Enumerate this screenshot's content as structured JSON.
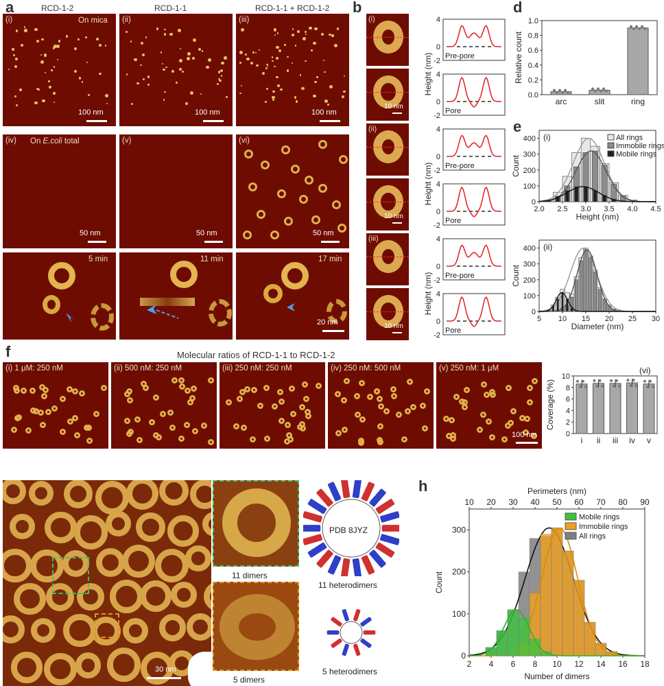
{
  "panel_a": {
    "letter": "a",
    "col_headers": [
      "RCD-1-2",
      "RCD-1-1",
      "RCD-1-1 + RCD-1-2"
    ],
    "top_row": {
      "labels": [
        "(i)",
        "(ii)",
        "(iii)"
      ],
      "substrate": "On mica",
      "scale": "100 nm"
    },
    "bottom_row": {
      "labels": [
        "(iv)",
        "(v)",
        "(vi)"
      ],
      "substrate_prefix": "On ",
      "substrate_italic": "E.coli",
      "substrate_suffix": " total",
      "scale": "50 nm"
    }
  },
  "panel_c": {
    "letter": "c",
    "times": [
      "5 min",
      "11 min",
      "17 min"
    ],
    "scale": "20 nm"
  },
  "panel_b": {
    "letter": "b",
    "labels": [
      "(i)",
      "(ii)",
      "(iii)"
    ],
    "scale": "10 nm",
    "profile_labels": [
      "Pre-pore",
      "Pore",
      "Pre-pore",
      "Pore",
      "Pre-pore",
      "Pore"
    ],
    "ylabel": "Height (nm)",
    "yticks": [
      "4",
      "0",
      "-2"
    ]
  },
  "panel_d": {
    "letter": "d",
    "chart_data": {
      "type": "bar",
      "categories": [
        "arc",
        "slit",
        "ring"
      ],
      "values": [
        0.04,
        0.06,
        0.9
      ],
      "ylabel": "Relative count",
      "ylim": [
        0,
        1.0
      ],
      "yticks": [
        "0.0",
        "0.2",
        "0.4",
        "0.6",
        "0.8",
        "1.0"
      ]
    }
  },
  "panel_e": {
    "letter": "e",
    "sub_i": {
      "label": "(i)",
      "chart_data": {
        "type": "bar",
        "xlabel": "Height (nm)",
        "ylabel": "Count",
        "xlim": [
          2.0,
          4.5
        ],
        "ylim": [
          0,
          450
        ],
        "xticks": [
          "2.0",
          "2.5",
          "3.0",
          "3.5",
          "4.0",
          "4.5"
        ],
        "yticks": [
          "0",
          "100",
          "200",
          "300",
          "400"
        ],
        "legend": [
          "All rings",
          "Immobile rings",
          "Mobile rings"
        ],
        "x": [
          2.2,
          2.4,
          2.6,
          2.8,
          3.0,
          3.2,
          3.4,
          3.6,
          3.8,
          4.0
        ],
        "series": [
          {
            "name": "All rings",
            "values": [
              10,
              60,
              160,
              310,
              400,
              350,
              240,
              120,
              40,
              10
            ]
          },
          {
            "name": "Immobile rings",
            "values": [
              5,
              30,
              100,
              220,
              310,
              320,
              230,
              110,
              35,
              8
            ]
          },
          {
            "name": "Mobile rings",
            "values": [
              5,
              35,
              70,
              95,
              95,
              70,
              40,
              15,
              5,
              2
            ]
          }
        ]
      }
    },
    "sub_ii": {
      "label": "(ii)",
      "chart_data": {
        "type": "bar",
        "xlabel": "Diameter (nm)",
        "ylabel": "Count",
        "xlim": [
          5,
          30
        ],
        "ylim": [
          0,
          450
        ],
        "xticks": [
          "5",
          "10",
          "15",
          "20",
          "25",
          "30"
        ],
        "yticks": [
          "0",
          "100",
          "200",
          "300",
          "400"
        ],
        "x": [
          7,
          8,
          9,
          10,
          11,
          12,
          13,
          14,
          15,
          16,
          17,
          18,
          19,
          20,
          21,
          22
        ],
        "series": [
          {
            "name": "All rings",
            "values": [
              10,
              40,
              90,
              140,
              120,
              110,
              220,
              340,
              400,
              350,
              260,
              150,
              80,
              40,
              15,
              5
            ]
          },
          {
            "name": "Immobile rings",
            "values": [
              0,
              5,
              10,
              20,
              40,
              90,
              200,
              320,
              390,
              340,
              250,
              140,
              75,
              35,
              12,
              4
            ]
          },
          {
            "name": "Mobile rings",
            "values": [
              10,
              35,
              80,
              120,
              80,
              20,
              5,
              0,
              0,
              0,
              0,
              0,
              0,
              0,
              0,
              0
            ]
          }
        ]
      }
    }
  },
  "panel_f": {
    "letter": "f",
    "title": "Molecular ratios of RCD-1-1 to RCD-1-2",
    "images": [
      {
        "label": "(i)",
        "ratio": "1 μM: 250 nM"
      },
      {
        "label": "(ii)",
        "ratio": "500 nM: 250 nM"
      },
      {
        "label": "(iii)",
        "ratio": "250 nM: 250 nM"
      },
      {
        "label": "(iv)",
        "ratio": "250 nM: 500 nM"
      },
      {
        "label": "(v)",
        "ratio": "250 nM: 1 μM"
      }
    ],
    "scale": "100 nm",
    "chart": {
      "label": "(vi)",
      "chart_data": {
        "type": "bar",
        "categories": [
          "i",
          "ii",
          "iii",
          "iv",
          "v"
        ],
        "values": [
          8.6,
          8.7,
          8.7,
          8.8,
          8.6
        ],
        "ylabel": "Coverage (%)",
        "ylim": [
          0,
          10
        ],
        "yticks": [
          "0",
          "2",
          "4",
          "6",
          "8",
          "10"
        ]
      }
    }
  },
  "panel_g": {
    "letter": "g",
    "scale": "30 nm",
    "zoom1_caption": "11 dimers",
    "zoom2_caption": "5 dimers",
    "model_label": "PDB 8JYZ",
    "model1_caption": "11 heterodimers",
    "model2_caption": "5 heterodimers",
    "colors": {
      "box1": "#3fbf6a",
      "box2": "#e0981a",
      "red": "#d03030",
      "blue": "#2f3fc8"
    }
  },
  "panel_h": {
    "letter": "h",
    "chart_data": {
      "type": "bar",
      "title": "Perimeters (nm)",
      "xlabel": "Number of dimers",
      "ylabel": "Count",
      "xlim": [
        2,
        18
      ],
      "ylim": [
        0,
        350
      ],
      "xticks": [
        "2",
        "4",
        "6",
        "8",
        "10",
        "12",
        "14",
        "16",
        "18"
      ],
      "top_ticks": [
        "10",
        "20",
        "30",
        "40",
        "50",
        "60",
        "70",
        "80",
        "90"
      ],
      "yticks": [
        "0",
        "100",
        "200",
        "300"
      ],
      "legend": [
        "Mobile rings",
        "Immobile rings",
        "All rings"
      ],
      "x": [
        4,
        5,
        6,
        7,
        8,
        9,
        10,
        11,
        12,
        13,
        14,
        15
      ],
      "series": [
        {
          "name": "Mobile rings",
          "color": "#3cc43c",
          "values": [
            20,
            60,
            110,
            90,
            40,
            10,
            0,
            0,
            0,
            0,
            0,
            0
          ]
        },
        {
          "name": "Immobile rings",
          "color": "#f0a020",
          "values": [
            0,
            0,
            5,
            30,
            150,
            290,
            305,
            250,
            180,
            80,
            30,
            10
          ]
        },
        {
          "name": "All rings",
          "color": "#808080",
          "values": [
            20,
            60,
            110,
            200,
            280,
            285,
            305,
            250,
            180,
            80,
            30,
            10
          ]
        }
      ]
    }
  }
}
